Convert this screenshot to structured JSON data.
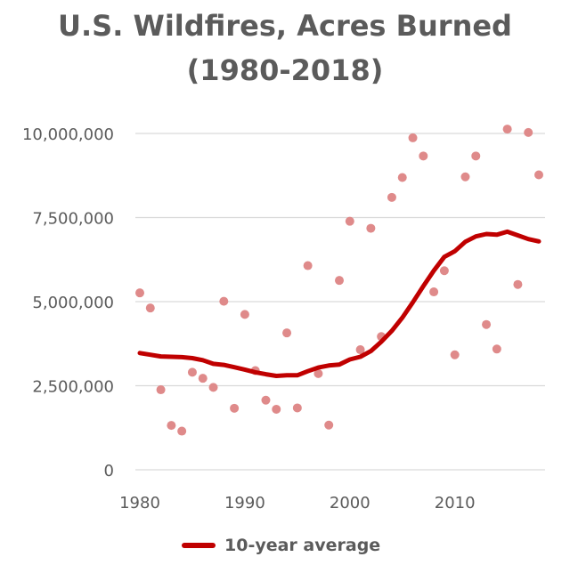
{
  "chart_data": {
    "type": "scatter",
    "title_lines": [
      "U.S. Wildfires, Acres Burned",
      "(1980-2018)"
    ],
    "xlabel": "",
    "ylabel": "",
    "xlim": [
      1980,
      2018
    ],
    "ylim": [
      0,
      10000000
    ],
    "x_ticks": [
      1980,
      1990,
      2000,
      2010
    ],
    "y_ticks": [
      {
        "value": 0,
        "label": "0"
      },
      {
        "value": 2500000,
        "label": "2,500,000"
      },
      {
        "value": 5000000,
        "label": "5,000,000"
      },
      {
        "value": 7500000,
        "label": "7,500,000"
      },
      {
        "value": 10000000,
        "label": "10,000,000"
      }
    ],
    "grid": true,
    "legend_position": "bottom-center",
    "colors": {
      "points": "#df8a8a",
      "average_line": "#c00000",
      "grid": "#d9d9d9",
      "text": "#5b5b5b"
    },
    "series": [
      {
        "type": "scatter",
        "x": [
          1980,
          1981,
          1982,
          1983,
          1984,
          1985,
          1986,
          1987,
          1988,
          1989,
          1990,
          1991,
          1992,
          1993,
          1994,
          1995,
          1996,
          1997,
          1998,
          1999,
          2000,
          2001,
          2002,
          2003,
          2004,
          2005,
          2006,
          2007,
          2008,
          2009,
          2010,
          2011,
          2012,
          2013,
          2014,
          2015,
          2016,
          2017,
          2018
        ],
        "y": [
          5260000,
          4810000,
          2380000,
          1320000,
          1150000,
          2900000,
          2720000,
          2450000,
          5010000,
          1830000,
          4620000,
          2950000,
          2070000,
          1800000,
          4070000,
          1840000,
          6070000,
          2860000,
          1330000,
          5630000,
          7390000,
          3570000,
          7180000,
          3960000,
          8100000,
          8690000,
          9870000,
          9330000,
          5290000,
          5920000,
          3420000,
          8710000,
          9330000,
          4320000,
          3590000,
          10130000,
          5510000,
          10030000,
          8770000
        ]
      },
      {
        "type": "line",
        "name": "10-year average",
        "x": [
          1980,
          1981,
          1982,
          1983,
          1984,
          1985,
          1986,
          1987,
          1988,
          1989,
          1990,
          1991,
          1992,
          1993,
          1994,
          1995,
          1996,
          1997,
          1998,
          1999,
          2000,
          2001,
          2002,
          2003,
          2004,
          2005,
          2006,
          2007,
          2008,
          2009,
          2010,
          2011,
          2012,
          2013,
          2014,
          2015,
          2016,
          2017,
          2018
        ],
        "y": [
          3470000,
          3420000,
          3370000,
          3360000,
          3350000,
          3320000,
          3260000,
          3150000,
          3120000,
          3050000,
          2980000,
          2900000,
          2840000,
          2790000,
          2810000,
          2810000,
          2930000,
          3040000,
          3100000,
          3130000,
          3280000,
          3360000,
          3530000,
          3810000,
          4130000,
          4520000,
          4980000,
          5460000,
          5920000,
          6330000,
          6500000,
          6780000,
          6940000,
          7010000,
          6990000,
          7080000,
          6970000,
          6860000,
          6790000
        ]
      }
    ]
  }
}
